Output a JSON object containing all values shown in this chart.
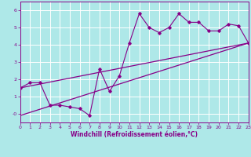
{
  "xlabel": "Windchill (Refroidissement éolien,°C)",
  "bg_color": "#aee8e8",
  "line_color": "#880088",
  "grid_color": "#ffffff",
  "xmin": 0,
  "xmax": 23,
  "ymin": -0.5,
  "ymax": 6.5,
  "yticks": [
    0,
    1,
    2,
    3,
    4,
    5,
    6
  ],
  "ytick_labels": [
    "-0",
    "1",
    "2",
    "3",
    "4",
    "5",
    "6"
  ],
  "xticks": [
    0,
    1,
    2,
    3,
    4,
    5,
    6,
    7,
    8,
    9,
    10,
    11,
    12,
    13,
    14,
    15,
    16,
    17,
    18,
    19,
    20,
    21,
    22,
    23
  ],
  "data_x": [
    0,
    1,
    2,
    3,
    4,
    5,
    6,
    7,
    8,
    9,
    10,
    11,
    12,
    13,
    14,
    15,
    16,
    17,
    18,
    19,
    20,
    21,
    22,
    23
  ],
  "data_y": [
    1.5,
    1.8,
    1.8,
    0.5,
    0.5,
    0.4,
    0.3,
    -0.1,
    2.6,
    1.3,
    2.2,
    4.1,
    5.8,
    5.0,
    4.7,
    5.0,
    5.8,
    5.3,
    5.3,
    4.8,
    4.8,
    5.2,
    5.1,
    4.1
  ],
  "trend1_x": [
    0,
    23
  ],
  "trend1_y": [
    1.5,
    4.1
  ],
  "trend2_x": [
    0,
    23
  ],
  "trend2_y": [
    -0.1,
    4.1
  ]
}
